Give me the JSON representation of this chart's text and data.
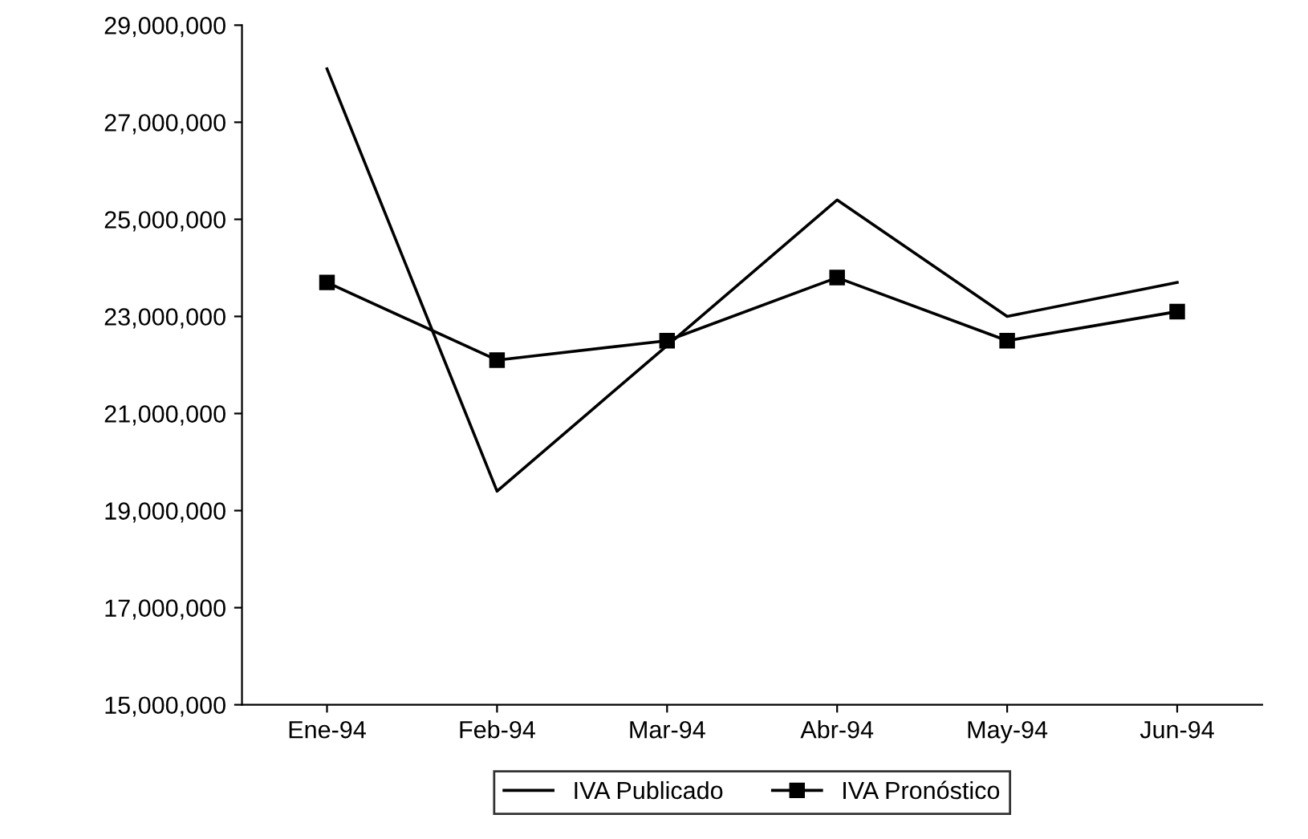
{
  "chart_data": {
    "type": "line",
    "categories": [
      "Ene-94",
      "Feb-94",
      "Mar-94",
      "Abr-94",
      "May-94",
      "Jun-94"
    ],
    "series": [
      {
        "name": "IVA Publicado",
        "color": "#000000",
        "marker": "none",
        "values": [
          28100000,
          19400000,
          22400000,
          25400000,
          23000000,
          23700000
        ]
      },
      {
        "name": "IVA Pronóstico",
        "color": "#000000",
        "marker": "square",
        "values": [
          23700000,
          22100000,
          22500000,
          23800000,
          22500000,
          23100000
        ]
      }
    ],
    "ylim": [
      15000000,
      29000000
    ],
    "yticks": [
      {
        "value": 15000000,
        "label": "15,000,000"
      },
      {
        "value": 17000000,
        "label": "17,000,000"
      },
      {
        "value": 19000000,
        "label": "19,000,000"
      },
      {
        "value": 21000000,
        "label": "21,000,000"
      },
      {
        "value": 23000000,
        "label": "23,000,000"
      },
      {
        "value": 25000000,
        "label": "25,000,000"
      },
      {
        "value": 27000000,
        "label": "27,000,000"
      },
      {
        "value": 29000000,
        "label": "29,000,000"
      }
    ],
    "grid": false,
    "legend": "bottom"
  }
}
